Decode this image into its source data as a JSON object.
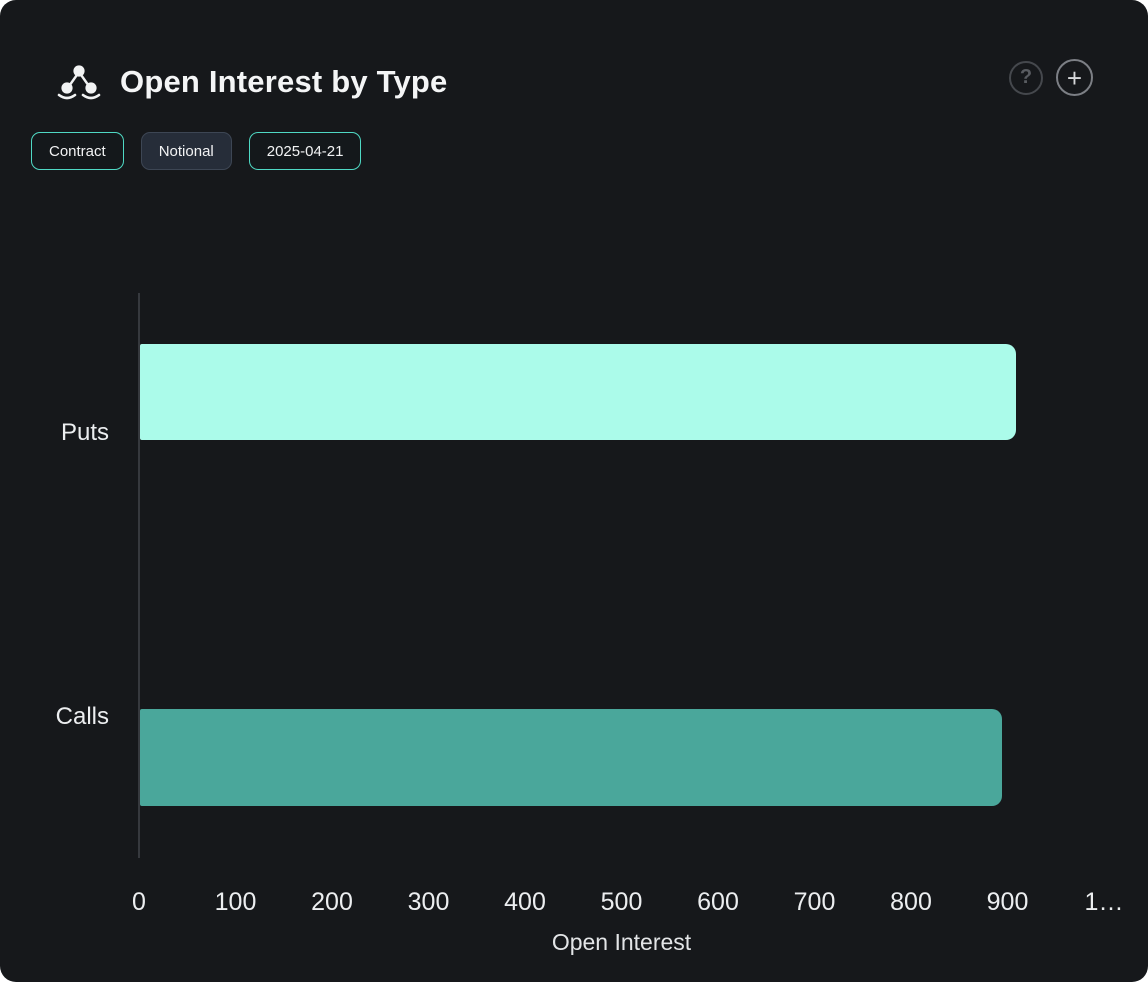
{
  "panel": {
    "title": "Open Interest by Type"
  },
  "header_icons": {
    "help_label": "?",
    "add_label": "+"
  },
  "filters": [
    {
      "label": "Contract",
      "active": true
    },
    {
      "label": "Notional",
      "active": false
    },
    {
      "label": "2025-04-21",
      "active": true
    }
  ],
  "chart_data": {
    "type": "bar",
    "orientation": "horizontal",
    "title": "Open Interest by Type",
    "categories": [
      "Puts",
      "Calls"
    ],
    "values": [
      908,
      893
    ],
    "colors": [
      "#abfbea",
      "#4aa79b"
    ],
    "xlabel": "Open Interest",
    "ylabel": "",
    "xlim": [
      0,
      1000
    ],
    "xticks": [
      0,
      100,
      200,
      300,
      400,
      500,
      600,
      700,
      800,
      900,
      1000
    ],
    "xtick_labels": [
      "0",
      "100",
      "200",
      "300",
      "400",
      "500",
      "600",
      "700",
      "800",
      "900",
      "1…"
    ],
    "grid": false,
    "legend": false
  }
}
